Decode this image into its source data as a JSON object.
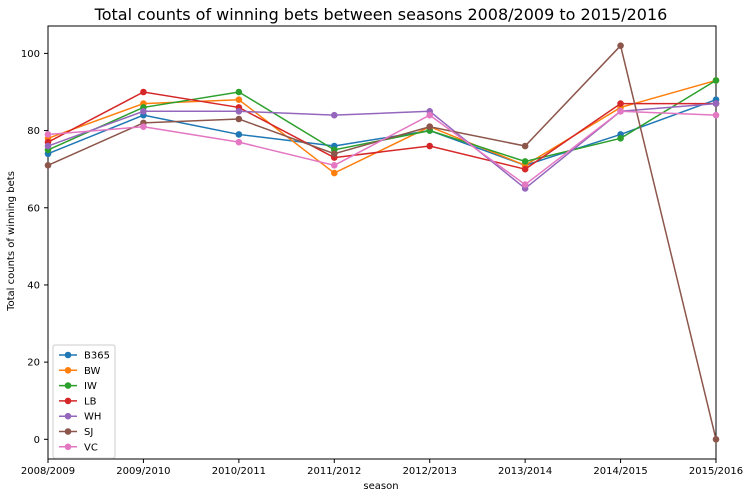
{
  "chart_data": {
    "type": "line",
    "title": "Total counts of winning bets between seasons 2008/2009 to 2015/2016",
    "xlabel": "season",
    "ylabel": "Total counts of winning bets",
    "categories": [
      "2008/2009",
      "2009/2010",
      "2010/2011",
      "2011/2012",
      "2012/2013",
      "2013/2014",
      "2014/2015",
      "2015/2016"
    ],
    "yticks": [
      0,
      20,
      40,
      60,
      80,
      100
    ],
    "ylim": [
      -5.1,
      107.1
    ],
    "grid": false,
    "legend_position": "lower-left",
    "series": [
      {
        "name": "B365",
        "color": "#1f77b4",
        "values": [
          74,
          84,
          79,
          76,
          80,
          71,
          79,
          88
        ]
      },
      {
        "name": "BW",
        "color": "#ff7f0e",
        "values": [
          78,
          87,
          88,
          69,
          81,
          71,
          86,
          93
        ]
      },
      {
        "name": "IW",
        "color": "#2ca02c",
        "values": [
          75,
          86,
          90,
          75,
          80,
          72,
          78,
          93
        ]
      },
      {
        "name": "LB",
        "color": "#d62728",
        "values": [
          77,
          90,
          86,
          73,
          76,
          70,
          87,
          87
        ]
      },
      {
        "name": "WH",
        "color": "#9467bd",
        "values": [
          76,
          85,
          85,
          84,
          85,
          65,
          85,
          87
        ]
      },
      {
        "name": "SJ",
        "color": "#8c564b",
        "values": [
          71,
          82,
          83,
          74,
          81,
          76,
          102,
          0
        ]
      },
      {
        "name": "VC",
        "color": "#e377c2",
        "values": [
          79,
          81,
          77,
          71,
          84,
          66,
          85,
          84
        ]
      }
    ]
  }
}
